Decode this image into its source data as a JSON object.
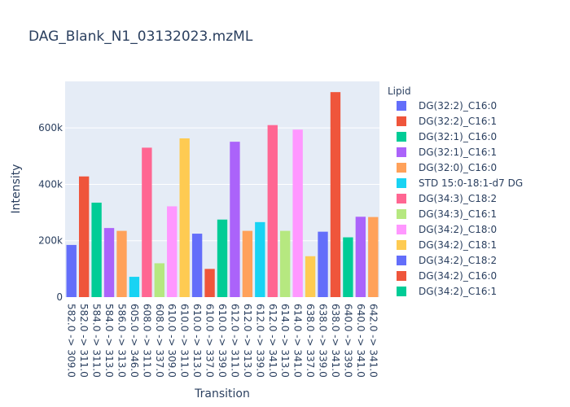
{
  "chart_data": {
    "type": "bar",
    "title": "DAG_Blank_N1_03132023.mzML",
    "xlabel": "Transition",
    "ylabel": "Intensity",
    "ylim": [
      0,
      765000
    ],
    "yticks": [
      0,
      200000,
      400000,
      600000
    ],
    "ytick_labels": [
      "0",
      "200k",
      "400k",
      "600k"
    ],
    "grid": true,
    "legend_title": "Lipid",
    "legend_position": "right",
    "categories": [
      "582.0 -> 309.0",
      "582.0 -> 311.0",
      "584.0 -> 311.0",
      "584.0 -> 313.0",
      "586.0 -> 313.0",
      "605.0 -> 346.0",
      "608.0 -> 311.0",
      "608.0 -> 337.0",
      "610.0 -> 309.0",
      "610.0 -> 311.0",
      "610.0 -> 313.0",
      "610.0 -> 337.0",
      "610.0 -> 339.0",
      "612.0 -> 311.0",
      "612.0 -> 313.0",
      "612.0 -> 339.0",
      "612.0 -> 341.0",
      "614.0 -> 313.0",
      "614.0 -> 341.0",
      "638.0 -> 337.0",
      "638.0 -> 339.0",
      "638.0 -> 341.0",
      "640.0 -> 339.0",
      "640.0 -> 341.0",
      "642.0 -> 341.0"
    ],
    "values": [
      185000,
      428000,
      335000,
      245000,
      235000,
      72000,
      530000,
      120000,
      322000,
      563000,
      225000,
      100000,
      275000,
      551000,
      235000,
      266000,
      610000,
      235000,
      594000,
      145000,
      232000,
      727000,
      212000,
      285000,
      284000
    ],
    "bar_colors": [
      "#636efa",
      "#EF553B",
      "#00cc96",
      "#ab63fa",
      "#FFA15A",
      "#19d3f3",
      "#FF6692",
      "#B6E880",
      "#FF97FF",
      "#FECB52",
      "#636efa",
      "#EF553B",
      "#00cc96",
      "#ab63fa",
      "#FFA15A",
      "#19d3f3",
      "#FF6692",
      "#B6E880",
      "#FF97FF",
      "#FECB52",
      "#636efa",
      "#EF553B",
      "#00cc96",
      "#ab63fa",
      "#FFA15A"
    ],
    "legend": [
      {
        "name": "DG(32:2)_C16:0",
        "color": "#636efa"
      },
      {
        "name": "DG(32:2)_C16:1",
        "color": "#EF553B"
      },
      {
        "name": "DG(32:1)_C16:0",
        "color": "#00cc96"
      },
      {
        "name": "DG(32:1)_C16:1",
        "color": "#ab63fa"
      },
      {
        "name": "DG(32:0)_C16:0",
        "color": "#FFA15A"
      },
      {
        "name": "STD 15:0-18:1-d7 DG",
        "color": "#19d3f3"
      },
      {
        "name": "DG(34:3)_C18:2",
        "color": "#FF6692"
      },
      {
        "name": "DG(34:3)_C16:1",
        "color": "#B6E880"
      },
      {
        "name": "DG(34:2)_C18:0",
        "color": "#FF97FF"
      },
      {
        "name": "DG(34:2)_C18:1",
        "color": "#FECB52"
      },
      {
        "name": "DG(34:2)_C18:2",
        "color": "#636efa"
      },
      {
        "name": "DG(34:2)_C16:0",
        "color": "#EF553B"
      },
      {
        "name": "DG(34:2)_C16:1",
        "color": "#00cc96"
      }
    ],
    "colors": {
      "plot_bg": "#e5ecf6",
      "grid": "#ffffff",
      "text": "#2a3f5f"
    }
  }
}
